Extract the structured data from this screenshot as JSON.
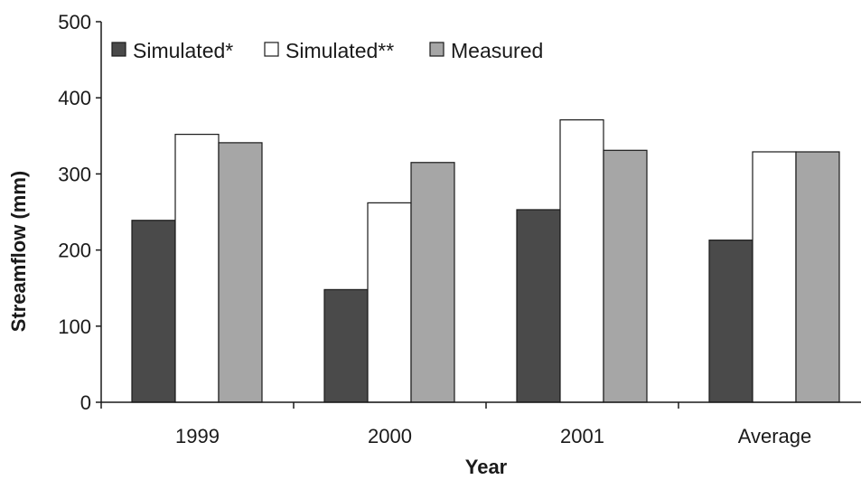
{
  "chart_data": {
    "type": "bar",
    "title": "",
    "xlabel": "Year",
    "ylabel": "Streamflow (mm)",
    "ylim": [
      0,
      500
    ],
    "yticks": [
      0,
      100,
      200,
      300,
      400,
      500
    ],
    "grid": false,
    "legend_position": "top-left",
    "categories": [
      "1999",
      "2000",
      "2001",
      "Average"
    ],
    "series": [
      {
        "name": "Simulated*",
        "color": "#4a4a4a",
        "values": [
          239,
          148,
          253,
          213
        ]
      },
      {
        "name": "Simulated**",
        "color": "#ffffff",
        "values": [
          352,
          262,
          371,
          329
        ]
      },
      {
        "name": "Measured",
        "color": "#a6a6a6",
        "values": [
          341,
          315,
          331,
          329
        ]
      }
    ]
  }
}
